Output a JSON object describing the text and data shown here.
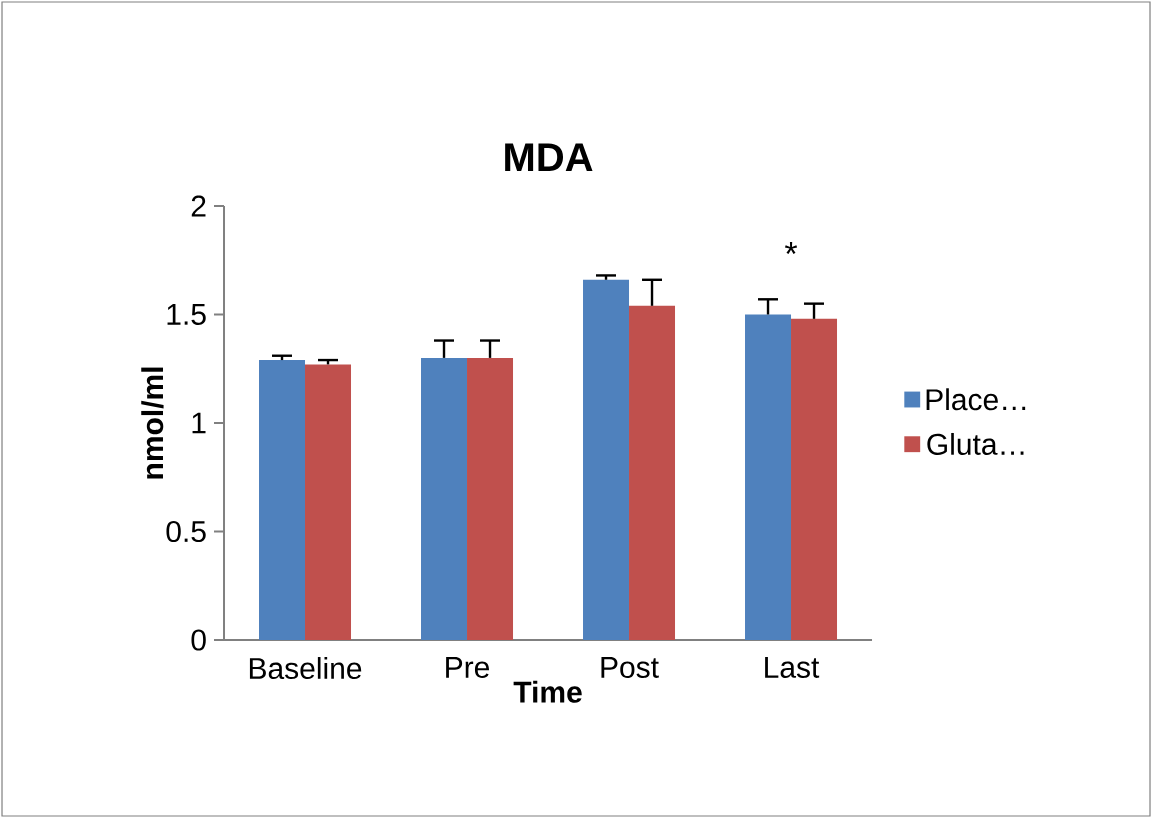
{
  "chart_data": {
    "type": "bar",
    "title": "MDA",
    "xlabel": "Time",
    "ylabel": "nmol/ml",
    "categories": [
      "Baseline",
      "Pre",
      "Post",
      "Last"
    ],
    "series": [
      {
        "name": "Place…",
        "color": "#4f81bd",
        "values": [
          1.29,
          1.3,
          1.66,
          1.5
        ],
        "errors": [
          0.02,
          0.08,
          0.02,
          0.07
        ]
      },
      {
        "name": "Gluta…",
        "color": "#c0504d",
        "values": [
          1.27,
          1.3,
          1.54,
          1.48
        ],
        "errors": [
          0.02,
          0.08,
          0.12,
          0.07
        ]
      }
    ],
    "ylim": [
      0,
      2
    ],
    "yticks": [
      0,
      0.5,
      1,
      1.5,
      2
    ],
    "legend": "right",
    "grid": false,
    "annotations": [
      "*"
    ]
  }
}
